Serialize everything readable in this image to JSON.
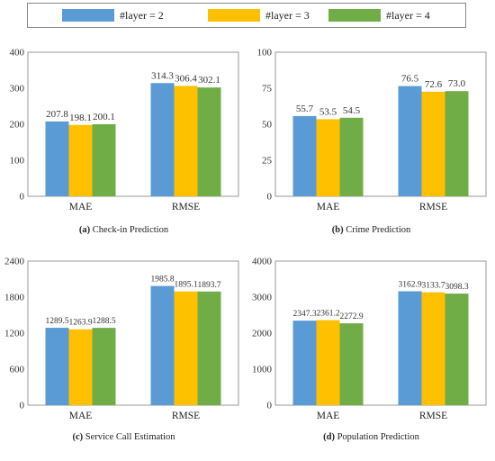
{
  "legend": [
    {
      "label": "#layer = 2",
      "color": "#5b9bd5"
    },
    {
      "label": "#layer = 3",
      "color": "#ffc000"
    },
    {
      "label": "#layer = 4",
      "color": "#70ad47"
    }
  ],
  "chart_data": [
    {
      "type": "bar",
      "caption_letter": "(a)",
      "caption_text": "Check-in Prediction",
      "categories": [
        "MAE",
        "RMSE"
      ],
      "series": [
        {
          "name": "#layer = 2",
          "values": [
            207.8,
            314.3
          ]
        },
        {
          "name": "#layer = 3",
          "values": [
            198.1,
            306.4
          ]
        },
        {
          "name": "#layer = 4",
          "values": [
            200.1,
            302.1
          ]
        }
      ],
      "value_labels": [
        [
          "207.8",
          "198.1",
          "200.1"
        ],
        [
          "314.3",
          "306.4",
          "302.1"
        ]
      ],
      "ylim": [
        0,
        400
      ],
      "yticks": [
        0,
        100,
        200,
        300,
        400
      ],
      "ytick_labels": [
        "0",
        "100",
        "200",
        "300",
        "400"
      ],
      "grid": false
    },
    {
      "type": "bar",
      "caption_letter": "(b)",
      "caption_text": "Crime Prediction",
      "categories": [
        "MAE",
        "RMSE"
      ],
      "series": [
        {
          "name": "#layer = 2",
          "values": [
            55.7,
            76.5
          ]
        },
        {
          "name": "#layer = 3",
          "values": [
            53.5,
            72.6
          ]
        },
        {
          "name": "#layer = 4",
          "values": [
            54.5,
            73.0
          ]
        }
      ],
      "value_labels": [
        [
          "55.7",
          "53.5",
          "54.5"
        ],
        [
          "76.5",
          "72.6",
          "73.0"
        ]
      ],
      "ylim": [
        0,
        100
      ],
      "yticks": [
        0,
        25,
        50,
        75,
        100
      ],
      "ytick_labels": [
        "0",
        "25",
        "50",
        "75",
        "100"
      ],
      "grid": false
    },
    {
      "type": "bar",
      "caption_letter": "(c)",
      "caption_text": "Service Call Estimation",
      "categories": [
        "MAE",
        "RMSE"
      ],
      "series": [
        {
          "name": "#layer = 2",
          "values": [
            1289.5,
            1985.8
          ]
        },
        {
          "name": "#layer = 3",
          "values": [
            1263.9,
            1895.1
          ]
        },
        {
          "name": "#layer = 4",
          "values": [
            1288.5,
            1893.7
          ]
        }
      ],
      "value_labels": [
        [
          "1289.5",
          "1263.9",
          "1288.5"
        ],
        [
          "1985.8",
          "1895.1",
          "1893.7"
        ]
      ],
      "ylim": [
        0,
        2400
      ],
      "yticks": [
        0,
        600,
        1200,
        1800,
        2400
      ],
      "ytick_labels": [
        "0",
        "600",
        "1200",
        "1800",
        "2400"
      ],
      "grid": false
    },
    {
      "type": "bar",
      "caption_letter": "(d)",
      "caption_text": "Population Prediction",
      "categories": [
        "MAE",
        "RMSE"
      ],
      "series": [
        {
          "name": "#layer = 2",
          "values": [
            2347.3,
            3162.9
          ]
        },
        {
          "name": "#layer = 3",
          "values": [
            2361.2,
            3133.7
          ]
        },
        {
          "name": "#layer = 4",
          "values": [
            2272.9,
            3098.3
          ]
        }
      ],
      "value_labels": [
        [
          "2347.3",
          "2361.2",
          "2272.9"
        ],
        [
          "3162.9",
          "3133.7",
          "3098.3"
        ]
      ],
      "ylim": [
        0,
        4000
      ],
      "yticks": [
        0,
        1000,
        2000,
        3000,
        4000
      ],
      "ytick_labels": [
        "0",
        "1000",
        "2000",
        "3000",
        "4000"
      ],
      "grid": false
    }
  ]
}
